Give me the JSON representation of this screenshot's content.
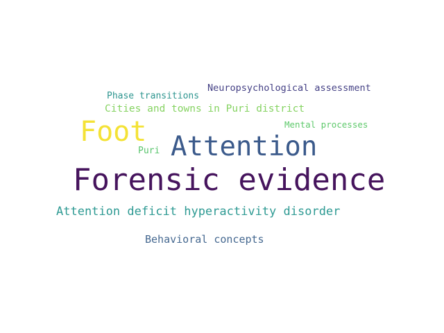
{
  "words": [
    {
      "text": "Forensic evidence",
      "color": "#46145d"
    },
    {
      "text": "Attention",
      "color": "#3b5a8b"
    },
    {
      "text": "Foot",
      "color": "#f4e236"
    },
    {
      "text": "Attention deficit hyperactivity disorder",
      "color": "#2e9a93"
    },
    {
      "text": "Behavioral concepts",
      "color": "#456890"
    },
    {
      "text": "Cities and towns in Puri district",
      "color": "#86d362"
    },
    {
      "text": "Neuropsychological assessment",
      "color": "#433f84"
    },
    {
      "text": "Phase transitions",
      "color": "#2d958f"
    },
    {
      "text": "Mental processes",
      "color": "#5ec96b"
    },
    {
      "text": "Puri",
      "color": "#58c46c"
    }
  ]
}
